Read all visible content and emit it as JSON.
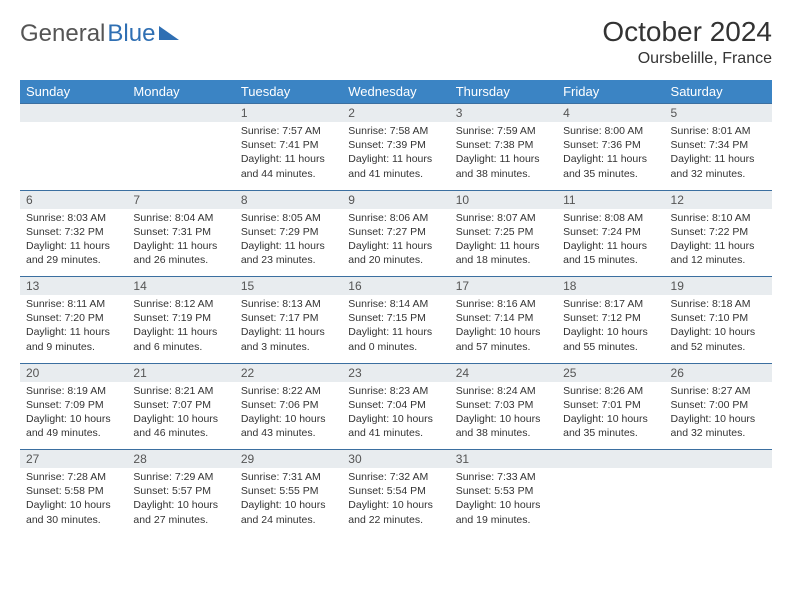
{
  "logo": {
    "general": "General",
    "blue": "Blue"
  },
  "title": "October 2024",
  "location": "Oursbelille, France",
  "weekdays": [
    "Sunday",
    "Monday",
    "Tuesday",
    "Wednesday",
    "Thursday",
    "Friday",
    "Saturday"
  ],
  "colors": {
    "header_bg": "#3b84c4",
    "row_divider": "#3b6fa0",
    "daynum_bg": "#e8ecef"
  },
  "weeks": [
    [
      null,
      null,
      {
        "n": "1",
        "sr": "7:57 AM",
        "ss": "7:41 PM",
        "dl": "11 hours and 44 minutes."
      },
      {
        "n": "2",
        "sr": "7:58 AM",
        "ss": "7:39 PM",
        "dl": "11 hours and 41 minutes."
      },
      {
        "n": "3",
        "sr": "7:59 AM",
        "ss": "7:38 PM",
        "dl": "11 hours and 38 minutes."
      },
      {
        "n": "4",
        "sr": "8:00 AM",
        "ss": "7:36 PM",
        "dl": "11 hours and 35 minutes."
      },
      {
        "n": "5",
        "sr": "8:01 AM",
        "ss": "7:34 PM",
        "dl": "11 hours and 32 minutes."
      }
    ],
    [
      {
        "n": "6",
        "sr": "8:03 AM",
        "ss": "7:32 PM",
        "dl": "11 hours and 29 minutes."
      },
      {
        "n": "7",
        "sr": "8:04 AM",
        "ss": "7:31 PM",
        "dl": "11 hours and 26 minutes."
      },
      {
        "n": "8",
        "sr": "8:05 AM",
        "ss": "7:29 PM",
        "dl": "11 hours and 23 minutes."
      },
      {
        "n": "9",
        "sr": "8:06 AM",
        "ss": "7:27 PM",
        "dl": "11 hours and 20 minutes."
      },
      {
        "n": "10",
        "sr": "8:07 AM",
        "ss": "7:25 PM",
        "dl": "11 hours and 18 minutes."
      },
      {
        "n": "11",
        "sr": "8:08 AM",
        "ss": "7:24 PM",
        "dl": "11 hours and 15 minutes."
      },
      {
        "n": "12",
        "sr": "8:10 AM",
        "ss": "7:22 PM",
        "dl": "11 hours and 12 minutes."
      }
    ],
    [
      {
        "n": "13",
        "sr": "8:11 AM",
        "ss": "7:20 PM",
        "dl": "11 hours and 9 minutes."
      },
      {
        "n": "14",
        "sr": "8:12 AM",
        "ss": "7:19 PM",
        "dl": "11 hours and 6 minutes."
      },
      {
        "n": "15",
        "sr": "8:13 AM",
        "ss": "7:17 PM",
        "dl": "11 hours and 3 minutes."
      },
      {
        "n": "16",
        "sr": "8:14 AM",
        "ss": "7:15 PM",
        "dl": "11 hours and 0 minutes."
      },
      {
        "n": "17",
        "sr": "8:16 AM",
        "ss": "7:14 PM",
        "dl": "10 hours and 57 minutes."
      },
      {
        "n": "18",
        "sr": "8:17 AM",
        "ss": "7:12 PM",
        "dl": "10 hours and 55 minutes."
      },
      {
        "n": "19",
        "sr": "8:18 AM",
        "ss": "7:10 PM",
        "dl": "10 hours and 52 minutes."
      }
    ],
    [
      {
        "n": "20",
        "sr": "8:19 AM",
        "ss": "7:09 PM",
        "dl": "10 hours and 49 minutes."
      },
      {
        "n": "21",
        "sr": "8:21 AM",
        "ss": "7:07 PM",
        "dl": "10 hours and 46 minutes."
      },
      {
        "n": "22",
        "sr": "8:22 AM",
        "ss": "7:06 PM",
        "dl": "10 hours and 43 minutes."
      },
      {
        "n": "23",
        "sr": "8:23 AM",
        "ss": "7:04 PM",
        "dl": "10 hours and 41 minutes."
      },
      {
        "n": "24",
        "sr": "8:24 AM",
        "ss": "7:03 PM",
        "dl": "10 hours and 38 minutes."
      },
      {
        "n": "25",
        "sr": "8:26 AM",
        "ss": "7:01 PM",
        "dl": "10 hours and 35 minutes."
      },
      {
        "n": "26",
        "sr": "8:27 AM",
        "ss": "7:00 PM",
        "dl": "10 hours and 32 minutes."
      }
    ],
    [
      {
        "n": "27",
        "sr": "7:28 AM",
        "ss": "5:58 PM",
        "dl": "10 hours and 30 minutes."
      },
      {
        "n": "28",
        "sr": "7:29 AM",
        "ss": "5:57 PM",
        "dl": "10 hours and 27 minutes."
      },
      {
        "n": "29",
        "sr": "7:31 AM",
        "ss": "5:55 PM",
        "dl": "10 hours and 24 minutes."
      },
      {
        "n": "30",
        "sr": "7:32 AM",
        "ss": "5:54 PM",
        "dl": "10 hours and 22 minutes."
      },
      {
        "n": "31",
        "sr": "7:33 AM",
        "ss": "5:53 PM",
        "dl": "10 hours and 19 minutes."
      },
      null,
      null
    ]
  ]
}
